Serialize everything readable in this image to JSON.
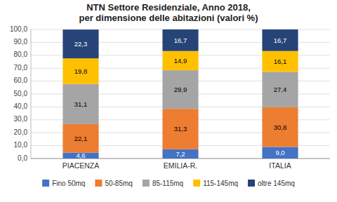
{
  "chart_data": {
    "type": "bar",
    "stacked": true,
    "data_labels": true,
    "grid": true,
    "legend": "bottom",
    "title": "NTN Settore Residenziale, Anno 2018,\nper dimensione delle abitazioni (valori %)",
    "categories": [
      "PIACENZA",
      "EMILIA-R.",
      "ITALIA"
    ],
    "series": [
      {
        "name": "Fino 50mq",
        "color": "#4472C4",
        "values": [
          4.6,
          7.2,
          9.0
        ],
        "value_labels": [
          "4,6",
          "7,2",
          "9,0"
        ]
      },
      {
        "name": "50-85mq",
        "color": "#ED7D31",
        "values": [
          22.1,
          31.3,
          30.8
        ],
        "value_labels": [
          "22,1",
          "31,3",
          "30,8"
        ]
      },
      {
        "name": "85-115mq",
        "color": "#A5A5A5",
        "values": [
          31.1,
          29.9,
          27.4
        ],
        "value_labels": [
          "31,1",
          "29,9",
          "27,4"
        ]
      },
      {
        "name": "115-145mq",
        "color": "#FFC000",
        "values": [
          19.8,
          14.9,
          16.1
        ],
        "value_labels": [
          "19,8",
          "14,9",
          "16,1"
        ]
      },
      {
        "name": "oltre 145mq",
        "color": "#264478",
        "values": [
          22.3,
          16.7,
          16.7
        ],
        "value_labels": [
          "22,3",
          "16,7",
          "16,7"
        ]
      }
    ],
    "ylim": [
      0,
      100
    ],
    "yticks": [
      {
        "value": 0,
        "label": "0,0"
      },
      {
        "value": 10,
        "label": "10,0"
      },
      {
        "value": 20,
        "label": "20,0"
      },
      {
        "value": 30,
        "label": "30,0"
      },
      {
        "value": 40,
        "label": "40,0"
      },
      {
        "value": 50,
        "label": "50,0"
      },
      {
        "value": 60,
        "label": "60,0"
      },
      {
        "value": 70,
        "label": "70,0"
      },
      {
        "value": 80,
        "label": "80,0"
      },
      {
        "value": 90,
        "label": "90,0"
      },
      {
        "value": 100,
        "label": "100,0"
      }
    ]
  }
}
